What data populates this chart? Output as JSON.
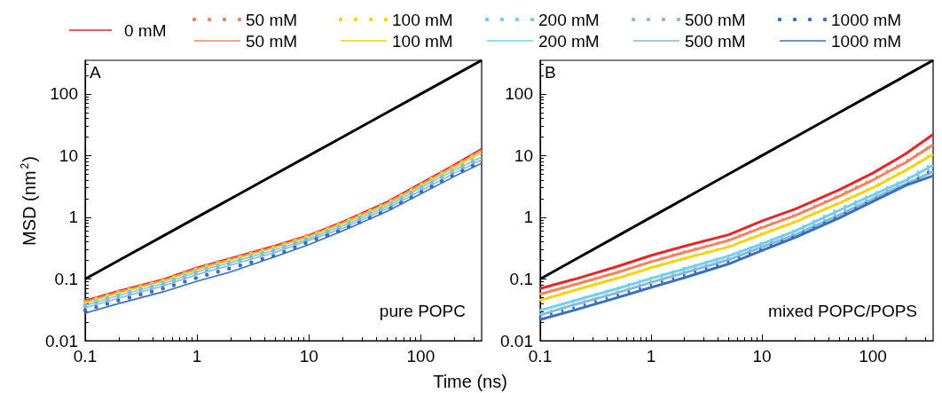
{
  "chart_data": [
    {
      "type": "line",
      "ylabel": "MSD (nm$^{2}$)",
      "xlabel": "Time (ns)",
      "log": "xy",
      "legend": "top",
      "xlim": [
        0.1,
        350
      ],
      "ylim": [
        0.01,
        350
      ],
      "xticks": [
        0.1,
        1,
        10,
        100
      ],
      "yticks": [
        0.01,
        0.1,
        1,
        10,
        100
      ],
      "annotations": [
        "A",
        "pure POPC"
      ],
      "x": [
        0.1,
        0.2,
        0.5,
        1,
        2,
        5,
        10,
        20,
        50,
        100,
        200,
        350
      ],
      "series": [
        {
          "name": "0 mM",
          "color": "#e8262a",
          "line_style": "solid",
          "values": [
            0.045,
            0.065,
            0.1,
            0.155,
            0.22,
            0.35,
            0.52,
            0.85,
            1.8,
            3.6,
            7.2,
            13
          ]
        },
        {
          "name": "50 mM",
          "color": "#f4845f",
          "line_style": "dotted",
          "values": [
            0.043,
            0.063,
            0.097,
            0.15,
            0.215,
            0.34,
            0.51,
            0.83,
            1.75,
            3.5,
            7,
            12.5
          ]
        },
        {
          "name": "50 mM",
          "color": "#f4845f",
          "line_style": "solid",
          "values": [
            0.043,
            0.062,
            0.096,
            0.148,
            0.21,
            0.335,
            0.5,
            0.82,
            1.7,
            3.4,
            6.8,
            12
          ]
        },
        {
          "name": "100 mM",
          "color": "#f5d40f",
          "line_style": "dotted",
          "values": [
            0.041,
            0.06,
            0.093,
            0.143,
            0.205,
            0.325,
            0.49,
            0.8,
            1.65,
            3.3,
            6.5,
            11.5
          ]
        },
        {
          "name": "100 mM",
          "color": "#f5d40f",
          "line_style": "solid",
          "values": [
            0.04,
            0.059,
            0.091,
            0.14,
            0.2,
            0.32,
            0.48,
            0.78,
            1.6,
            3.2,
            6.3,
            11
          ]
        },
        {
          "name": "200 mM",
          "color": "#6fd0f5",
          "line_style": "dotted",
          "values": [
            0.038,
            0.056,
            0.087,
            0.134,
            0.19,
            0.305,
            0.46,
            0.75,
            1.55,
            3.1,
            6,
            10
          ]
        },
        {
          "name": "200 mM",
          "color": "#6fd0f5",
          "line_style": "solid",
          "values": [
            0.037,
            0.054,
            0.084,
            0.13,
            0.185,
            0.295,
            0.45,
            0.72,
            1.5,
            3,
            5.8,
            9.5
          ]
        },
        {
          "name": "500 mM",
          "color": "#8ab7dc",
          "line_style": "dotted",
          "values": [
            0.036,
            0.052,
            0.081,
            0.125,
            0.178,
            0.285,
            0.44,
            0.7,
            1.45,
            2.9,
            5.5,
            9.2
          ]
        },
        {
          "name": "500 mM",
          "color": "#8ab7dc",
          "line_style": "solid",
          "values": [
            0.034,
            0.049,
            0.077,
            0.118,
            0.168,
            0.27,
            0.42,
            0.66,
            1.38,
            2.7,
            5.2,
            8.6
          ]
        },
        {
          "name": "1000 mM",
          "color": "#3a6fbf",
          "line_style": "dotted",
          "values": [
            0.031,
            0.045,
            0.07,
            0.105,
            0.15,
            0.24,
            0.4,
            0.63,
            1.3,
            2.55,
            4.9,
            8
          ]
        },
        {
          "name": "1000 mM",
          "color": "#3a6fbf",
          "line_style": "solid",
          "values": [
            0.028,
            0.04,
            0.062,
            0.092,
            0.13,
            0.23,
            0.36,
            0.6,
            1.25,
            2.4,
            4.6,
            7.5
          ]
        },
        {
          "color": "#000000",
          "line_style": "solid",
          "values": [
            0.1,
            0.2,
            0.5,
            1,
            2,
            5,
            10,
            20,
            50,
            100,
            200,
            350
          ]
        }
      ]
    },
    {
      "type": "line",
      "log": "xy",
      "xlim": [
        0.1,
        350
      ],
      "ylim": [
        0.01,
        350
      ],
      "xticks": [
        0.1,
        1,
        10,
        100
      ],
      "yticks": [
        0.01,
        0.1,
        1,
        10,
        100
      ],
      "annotations": [
        "B",
        "mixed POPC/POPS"
      ],
      "x": [
        0.1,
        0.2,
        0.5,
        1,
        2,
        5,
        10,
        20,
        50,
        100,
        200,
        350
      ],
      "series": [
        {
          "color": "#e8262a",
          "line_style": "solid",
          "values": [
            0.07,
            0.098,
            0.16,
            0.24,
            0.34,
            0.52,
            0.87,
            1.36,
            2.8,
            5.2,
            10.8,
            22
          ]
        },
        {
          "color": "#f4845f",
          "line_style": "dotted",
          "values": [
            0.058,
            0.082,
            0.13,
            0.195,
            0.28,
            0.43,
            0.7,
            1.1,
            2.3,
            4.2,
            8.2,
            15.5
          ]
        },
        {
          "color": "#f4845f",
          "line_style": "solid",
          "values": [
            0.057,
            0.08,
            0.128,
            0.19,
            0.27,
            0.42,
            0.68,
            1.07,
            2.2,
            4,
            7.8,
            15
          ]
        },
        {
          "color": "#f5d40f",
          "line_style": "dotted",
          "values": [
            0.046,
            0.066,
            0.105,
            0.155,
            0.22,
            0.34,
            0.55,
            0.87,
            1.75,
            3.1,
            6,
            11
          ]
        },
        {
          "color": "#f5d40f",
          "line_style": "solid",
          "values": [
            0.045,
            0.065,
            0.103,
            0.152,
            0.215,
            0.33,
            0.53,
            0.84,
            1.7,
            3,
            5.8,
            10.5
          ]
        },
        {
          "color": "#6fd0f5",
          "line_style": "dotted",
          "values": [
            0.031,
            0.045,
            0.072,
            0.105,
            0.15,
            0.24,
            0.38,
            0.62,
            1.4,
            2.4,
            4.2,
            7.5
          ]
        },
        {
          "color": "#6fd0f5",
          "line_style": "solid",
          "values": [
            0.031,
            0.044,
            0.07,
            0.102,
            0.145,
            0.235,
            0.37,
            0.6,
            1.3,
            2.3,
            4,
            7
          ]
        },
        {
          "color": "#8ab7dc",
          "line_style": "dotted",
          "values": [
            0.027,
            0.039,
            0.062,
            0.092,
            0.132,
            0.215,
            0.34,
            0.55,
            1.2,
            2.1,
            3.7,
            6.3
          ]
        },
        {
          "color": "#8ab7dc",
          "line_style": "solid",
          "values": [
            0.026,
            0.038,
            0.06,
            0.088,
            0.126,
            0.205,
            0.33,
            0.52,
            1.1,
            2,
            3.5,
            5.5
          ]
        },
        {
          "color": "#3a6fbf",
          "line_style": "dotted",
          "values": [
            0.024,
            0.034,
            0.055,
            0.08,
            0.115,
            0.19,
            0.31,
            0.5,
            1.05,
            1.9,
            3.3,
            6
          ]
        },
        {
          "color": "#3a6fbf",
          "line_style": "solid",
          "values": [
            0.022,
            0.031,
            0.05,
            0.073,
            0.105,
            0.175,
            0.29,
            0.47,
            0.98,
            1.8,
            3.3,
            4.7
          ]
        },
        {
          "color": "#000000",
          "line_style": "solid",
          "values": [
            0.1,
            0.2,
            0.5,
            1,
            2,
            5,
            10,
            20,
            50,
            100,
            200,
            350
          ]
        }
      ]
    }
  ]
}
